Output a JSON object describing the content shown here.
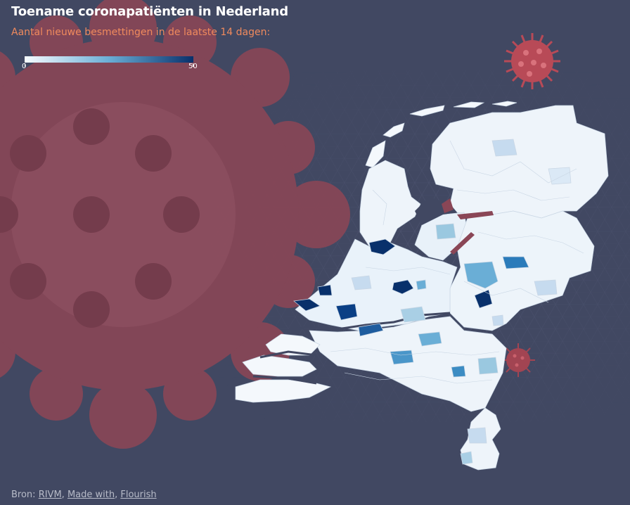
{
  "header": {
    "title": "Toename coronapatiënten in Nederland",
    "subtitle": "Aantal nieuwe besmettingen in de laatste 14 dagen:"
  },
  "legend": {
    "min_label": "0",
    "max_label": "50",
    "color_low": "#f7fbff",
    "color_mid": "#6aaed6",
    "color_high": "#08306b"
  },
  "source": {
    "prefix": "Bron: ",
    "rivm_link": "RIVM",
    "sep1": ", ",
    "made_with_link": "Made with",
    "sep2": ", ",
    "flourish_link": "Flourish"
  },
  "colors": {
    "background": "#414862",
    "virus": "#8a4656",
    "virus_small": "#b84a57",
    "title": "#ffffff",
    "subtitle": "#f08a5d",
    "land": "#eef4fa",
    "water": "#414862"
  },
  "icons": {
    "virus_large": "coronavirus-illustration",
    "virus_small_top": "coronavirus-icon",
    "virus_small_bottom": "coronavirus-icon"
  }
}
